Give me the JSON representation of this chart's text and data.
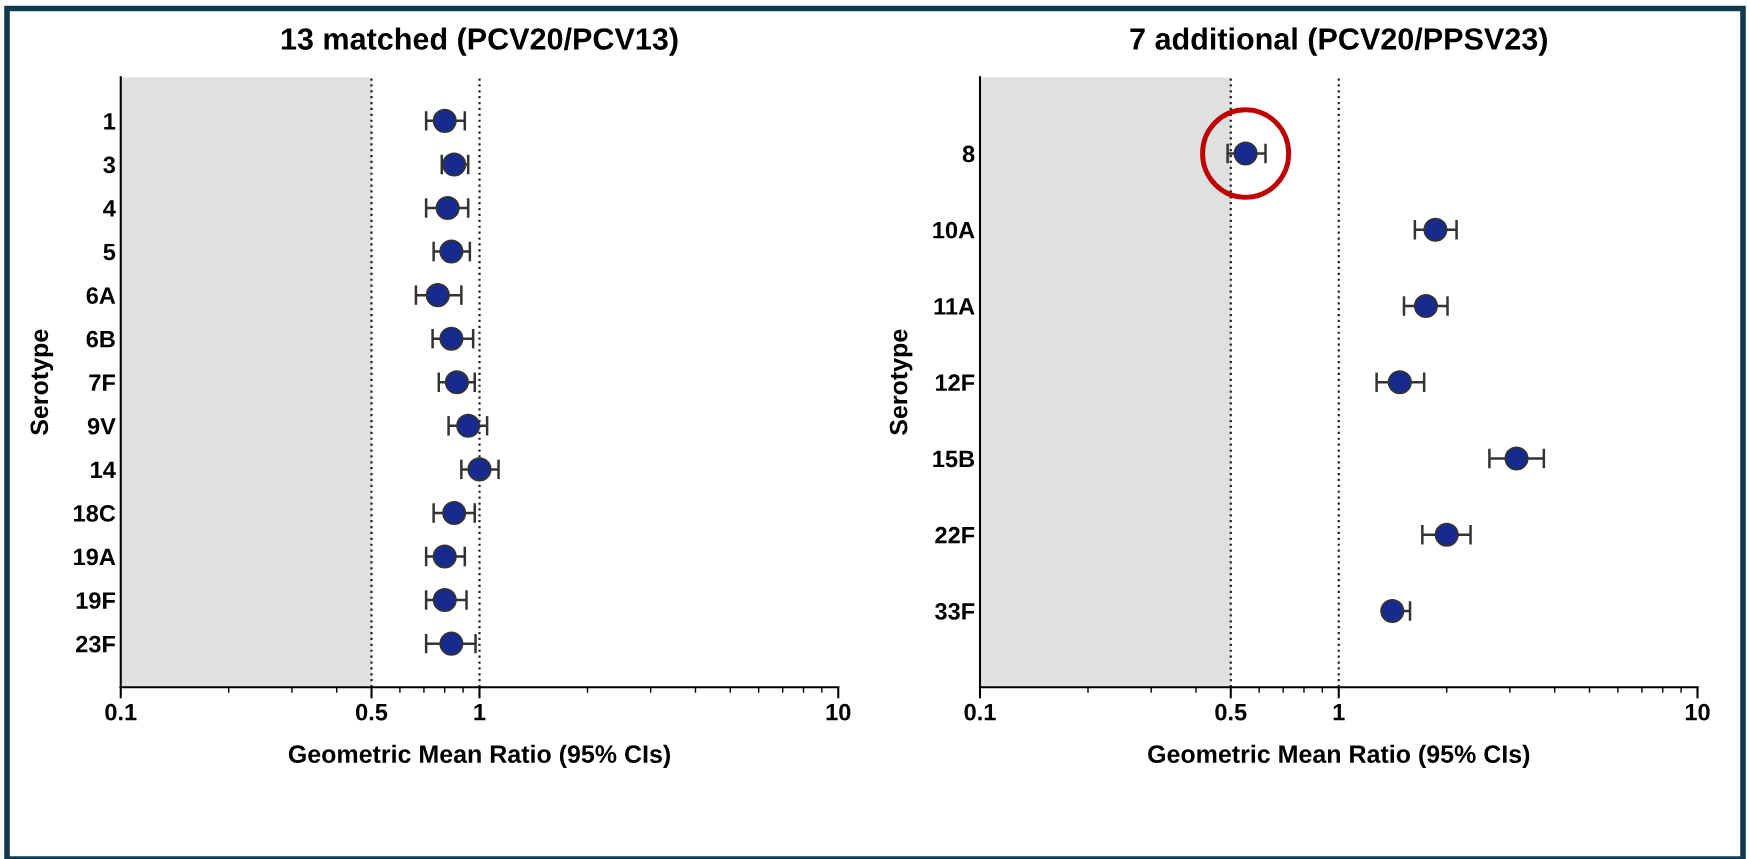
{
  "chart_data": [
    {
      "type": "scatter",
      "title": "13 matched (PCV20/PCV13)",
      "xlabel": "Geometric Mean Ratio (95% CIs)",
      "ylabel": "Serotype",
      "orientation": "horizontal",
      "log": "x",
      "marker": "circle",
      "grid": false,
      "categories": [
        "1",
        "3",
        "4",
        "5",
        "6A",
        "6B",
        "7F",
        "9V",
        "14",
        "18C",
        "19A",
        "19F",
        "23F"
      ],
      "series": [
        {
          "color": "#172b8f",
          "values": [
            0.8,
            0.85,
            0.815,
            0.835,
            0.765,
            0.835,
            0.865,
            0.93,
            1.0,
            0.85,
            0.8,
            0.8,
            0.835
          ],
          "errors": [
            [
              0.71,
              0.91
            ],
            [
              0.785,
              0.93
            ],
            [
              0.71,
              0.93
            ],
            [
              0.745,
              0.94
            ],
            [
              0.665,
              0.89
            ],
            [
              0.74,
              0.96
            ],
            [
              0.77,
              0.97
            ],
            [
              0.82,
              1.05
            ],
            [
              0.89,
              1.13
            ],
            [
              0.745,
              0.97
            ],
            [
              0.71,
              0.91
            ],
            [
              0.71,
              0.92
            ],
            [
              0.71,
              0.975
            ]
          ]
        }
      ],
      "xlim": [
        0.1,
        10
      ],
      "xticks": [
        0.1,
        0.5,
        1,
        10
      ],
      "ref_lines": [
        {
          "axis": "x",
          "value": 0.5,
          "line_style": "dotted"
        },
        {
          "axis": "x",
          "value": 1,
          "line_style": "dotted"
        }
      ],
      "bands": [
        {
          "axis": "x",
          "from": 0.1,
          "to": 0.5,
          "color": "#dfe0e2"
        }
      ]
    },
    {
      "type": "scatter",
      "title": "7 additional (PCV20/PPSV23)",
      "xlabel": "Geometric Mean Ratio (95% CIs)",
      "ylabel": "Serotype",
      "orientation": "horizontal",
      "log": "x",
      "marker": "circle",
      "grid": false,
      "categories": [
        "8",
        "10A",
        "11A",
        "12F",
        "15B",
        "22F",
        "33F"
      ],
      "series": [
        {
          "color": "#172b8f",
          "values": [
            0.55,
            1.86,
            1.75,
            1.48,
            3.13,
            2.0,
            1.41
          ],
          "errors": [
            [
              0.49,
              0.625
            ],
            [
              1.63,
              2.13
            ],
            [
              1.52,
              2.01
            ],
            [
              1.275,
              1.73
            ],
            [
              2.63,
              3.73
            ],
            [
              1.71,
              2.33
            ],
            [
              1.41,
              1.58
            ]
          ]
        }
      ],
      "xlim": [
        0.1,
        10
      ],
      "xticks": [
        0.1,
        0.5,
        1,
        10
      ],
      "ref_lines": [
        {
          "axis": "x",
          "value": 0.5,
          "line_style": "dotted"
        },
        {
          "axis": "x",
          "value": 1,
          "line_style": "dotted"
        }
      ],
      "bands": [
        {
          "axis": "x",
          "from": 0.1,
          "to": 0.5,
          "color": "#dfe0e2"
        }
      ]
    }
  ]
}
